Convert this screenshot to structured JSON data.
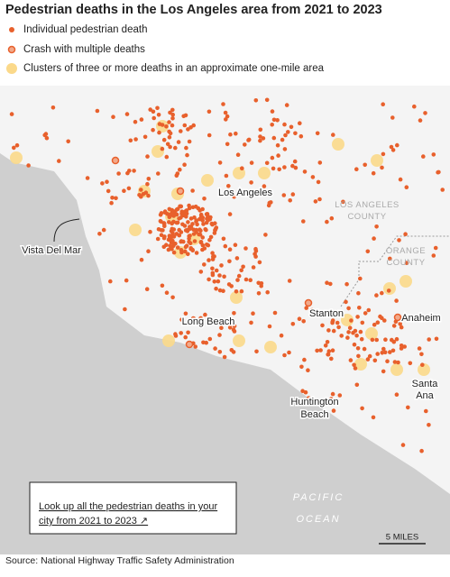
{
  "title": "Pedestrian deaths in the Los Angeles area from 2021 to 2023",
  "legend": [
    "Individual pedestrian death",
    "Crash with multiple deaths",
    "Clusters of three or more deaths in an approximate one-mile area"
  ],
  "places": {
    "los_angeles": "Los Angeles",
    "los_angeles_county": [
      "LOS ANGELES",
      "COUNTY"
    ],
    "orange_county": [
      "ORANGE",
      "COUNTY"
    ],
    "vista_del_mar": "Vista Del Mar",
    "long_beach": "Long Beach",
    "stanton": "Stanton",
    "anaheim": "Anaheim",
    "huntington_beach": [
      "Huntington",
      "Beach"
    ],
    "santa_ana": [
      "Santa",
      "Ana"
    ],
    "pacific_ocean": [
      "PACIFIC",
      "OCEAN"
    ]
  },
  "link": [
    "Look up all the pedestrian deaths in your",
    "city from 2021 to 2023 ↗"
  ],
  "scale": "5 MILES",
  "source": "Source: National Highway Traffic Safety Administration"
}
